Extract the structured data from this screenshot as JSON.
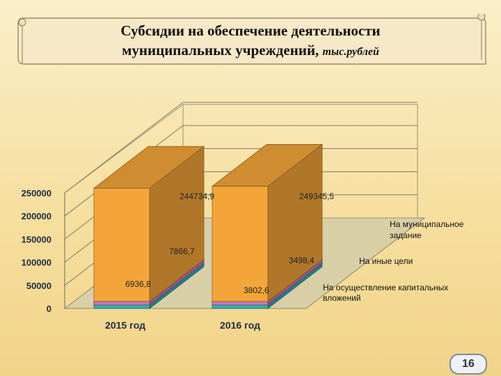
{
  "title": {
    "line1": "Субсидии на обеспечение деятельности",
    "line2": "муниципальных учреждений,",
    "unit": "тыс.рублей"
  },
  "page_number": "16",
  "colors": {
    "municipal_task": "#f4a53a",
    "other_goals": "#c878b8",
    "capital": "#2ab3b3"
  },
  "chart_data": {
    "type": "bar",
    "stacked": true,
    "three_d": true,
    "categories": [
      "2015 год",
      "2016 год"
    ],
    "series": [
      {
        "name": "На осуществление капитальных вложений",
        "values": [
          6936.8,
          3802.6
        ],
        "labels": [
          "6936,8",
          "3802,6"
        ]
      },
      {
        "name": "На иные цели",
        "values": [
          7866.7,
          3498.4
        ],
        "labels": [
          "7866,7",
          "3498,4"
        ]
      },
      {
        "name": "На муниципальное задание",
        "values": [
          244734.9,
          249345.5
        ],
        "labels": [
          "244734,9",
          "249345,5"
        ]
      }
    ],
    "yticks": [
      "0",
      "50000",
      "100000",
      "150000",
      "200000",
      "250000"
    ],
    "ylim": [
      0,
      250000
    ],
    "grid": true,
    "legend": "right, next to series"
  }
}
